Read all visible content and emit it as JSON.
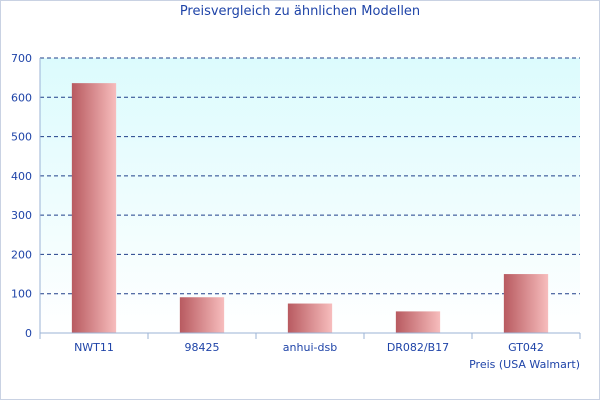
{
  "chart_data": {
    "type": "bar",
    "title": "Preisvergleich zu ähnlichen Modellen",
    "categories": [
      "NWT11",
      "98425",
      "anhui-dsb",
      "DR082/B17",
      "GT042"
    ],
    "series": [
      {
        "name": "Preis (USA Walmart)",
        "values": [
          636,
          91,
          75,
          55,
          150
        ]
      }
    ],
    "yticks": [
      0,
      100,
      200,
      300,
      400,
      500,
      600,
      700
    ],
    "ylim": [
      0,
      700
    ],
    "grid": true,
    "legend": "bottom-right",
    "colors": {
      "bar_dark": "#b85a60",
      "bar_light": "#f7bdbd",
      "plot_top": "#dcfbfd",
      "plot_bottom": "#ffffff",
      "grid": "#1f3f8a",
      "text": "#1f44a8",
      "axis": "#9bb3d6"
    }
  }
}
